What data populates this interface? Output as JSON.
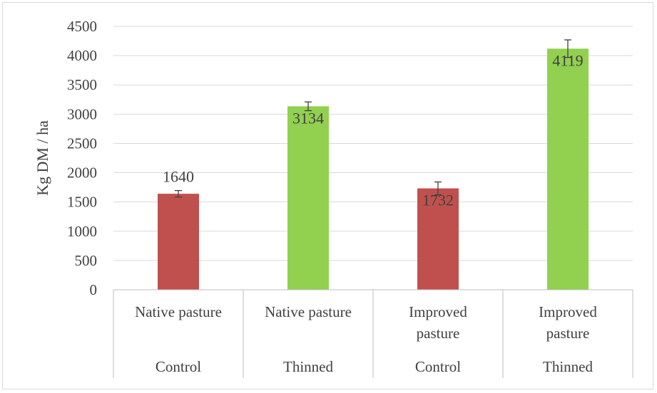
{
  "chart_data": {
    "type": "bar",
    "ylabel": "Kg DM / ha",
    "ylim": [
      0,
      4500
    ],
    "yticks": [
      0,
      500,
      1000,
      1500,
      2000,
      2500,
      3000,
      3500,
      4000,
      4500
    ],
    "grid": true,
    "categories": [
      {
        "lines": [
          "Native pasture"
        ],
        "group": "Control"
      },
      {
        "lines": [
          "Native pasture"
        ],
        "group": "Thinned"
      },
      {
        "lines": [
          "Improved",
          "pasture"
        ],
        "group": "Control"
      },
      {
        "lines": [
          "Improved",
          "pasture"
        ],
        "group": "Thinned"
      }
    ],
    "values": [
      1640,
      3134,
      1732,
      4119
    ],
    "data_labels": [
      "1640",
      "3134",
      "1732",
      "4119"
    ],
    "error": [
      55,
      75,
      110,
      150
    ],
    "colors": {
      "Control": "#c0504d",
      "Thinned": "#92d050"
    }
  }
}
